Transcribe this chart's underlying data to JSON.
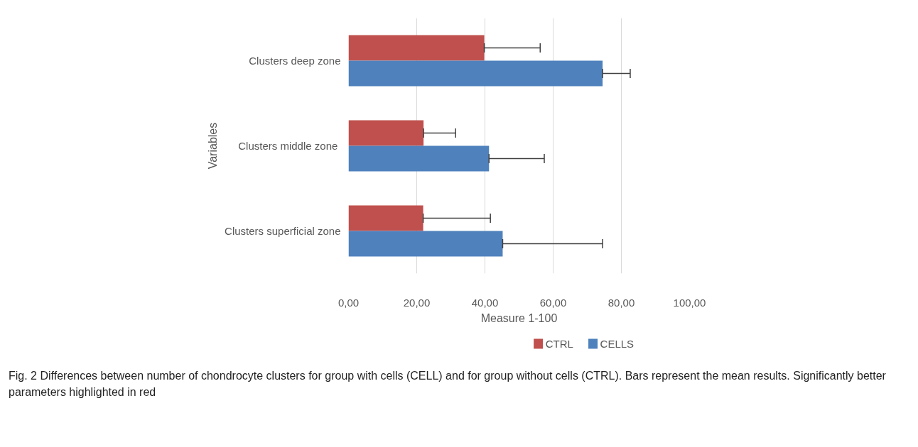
{
  "chart_data": {
    "type": "bar",
    "orientation": "horizontal",
    "categories": [
      "Clusters deep zone",
      "Clusters middle  zone",
      "Clusters superficial zone"
    ],
    "series": [
      {
        "name": "CTRL",
        "color": "#c0504d",
        "values": [
          39.8,
          22.0,
          21.9
        ],
        "errors": [
          [
            39.8,
            56.2
          ],
          [
            22.0,
            31.4
          ],
          [
            21.9,
            41.6
          ]
        ]
      },
      {
        "name": "CELLS",
        "color": "#4f81bd",
        "values": [
          74.5,
          41.2,
          45.2
        ],
        "errors": [
          [
            74.5,
            82.6
          ],
          [
            41.2,
            57.4
          ],
          [
            45.2,
            74.5
          ]
        ]
      }
    ],
    "xlim": [
      0,
      100
    ],
    "xticks": [
      {
        "value": 0,
        "label": "0,00"
      },
      {
        "value": 20,
        "label": "20,00"
      },
      {
        "value": 40,
        "label": "40,00"
      },
      {
        "value": 60,
        "label": "60,00"
      },
      {
        "value": 80,
        "label": "80,00"
      },
      {
        "value": 100,
        "label": "100,00"
      }
    ],
    "xlabel": "Measure 1-100",
    "ylabel": "Variables",
    "grid": "x",
    "legend": "bottom",
    "annotations": [
      "Fig. 2 Differences between number of chondrocyte clusters for group with cells (CELL) and for group without cells (CTRL). Bars represent the mean results. Significantly better parameters highlighted in red"
    ]
  }
}
